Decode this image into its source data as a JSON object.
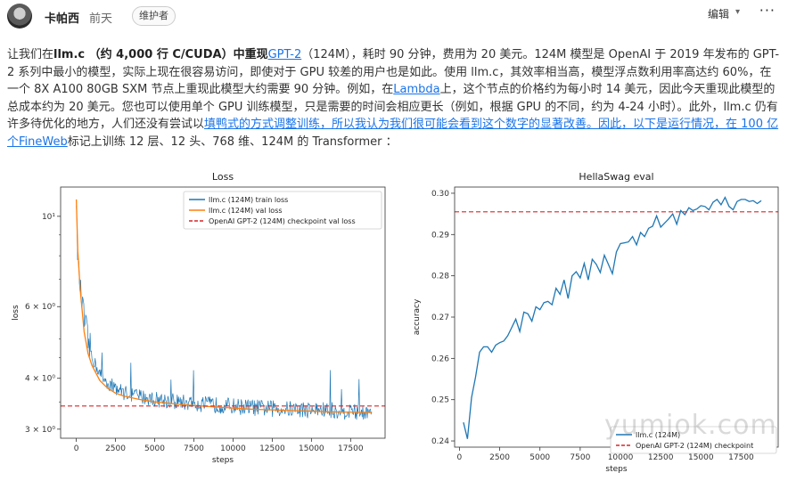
{
  "header": {
    "author": "卡帕西",
    "time": "前天",
    "badge": "维护者",
    "edit_label": "编辑",
    "edit_caret": "▾",
    "more_label": "···"
  },
  "paragraph": {
    "p1": "让我们在",
    "p1b": "llm.c （约 4,000 行 C/CUDA）中重现",
    "link_gpt2": "GPT-2",
    "p2": "（124M），耗时 90 分钟，费用为 20 美元。124M 模型是 OpenAI 于 2019 年发布的 GPT-2 系列中最小的模型，实际上现在很容易访问，即使对于 GPU 较差的用户也是如此。使用 llm.c，其效率相当高，模型浮点数利用率高达约 60%，在一个 8X A100 80GB SXM 节点上重现此模型大约需要 90 分钟。例如，在",
    "link_lambda": "Lambda",
    "p3": "上，这个节点的价格约为每小时 14 美元，因此今天重现此模型的总成本约为 20 美元。您也可以使用单个 GPU 训练模型，只是需要的时间会相应更长（例如，根据 GPU 的不同，约为 4-24 小时）。此外，llm.c 仍有许多待优化的地方，人们还没有尝试以",
    "link_duck": "填鸭式的方式调整训练，所以我认为我们很可能会看到这个数字的显著改善。因此，以下是运行情况，在 100 亿个",
    "link_fineweb": "FineWeb",
    "p4": "标记上训练 12 层、12 头、768 维、124M 的 Transformer ："
  },
  "watermark": "yumiok.com",
  "colors": {
    "train": "#1f77b4",
    "val": "#ff7f0e",
    "ref": "#d62728",
    "link": "#1a73e8"
  },
  "chart_data": [
    {
      "type": "line",
      "title": "Loss",
      "xlabel": "steps",
      "ylabel": "loss",
      "yscale": "log",
      "xlim": [
        -1000,
        19700
      ],
      "ylim": [
        2.85,
        11.8
      ],
      "xticks": [
        0,
        2500,
        5000,
        7500,
        10000,
        12500,
        15000,
        17500
      ],
      "xtick_labels": [
        "0",
        "2500",
        "5000",
        "7500",
        "10000",
        "12500",
        "15000",
        "17500"
      ],
      "yticks": [
        10,
        6,
        4,
        3
      ],
      "ytick_labels": [
        "10¹",
        "6 × 10⁰",
        "4 × 10⁰",
        "3 × 10⁰"
      ],
      "legend_position": "top-right",
      "series": [
        {
          "name": "llm.c (124M) train loss",
          "color": "#1f77b4",
          "x": [
            0,
            50,
            100,
            200,
            300,
            500,
            750,
            1000,
            1500,
            2000,
            2500,
            3000,
            4000,
            5000,
            6000,
            7000,
            8000,
            9000,
            10000,
            11000,
            12000,
            13000,
            14000,
            15000,
            16000,
            17000,
            18000,
            18865
          ],
          "y": [
            11.0,
            9.0,
            7.8,
            7.0,
            6.4,
            5.6,
            4.9,
            4.5,
            4.1,
            3.9,
            3.8,
            3.7,
            3.62,
            3.56,
            3.52,
            3.49,
            3.46,
            3.44,
            3.42,
            3.4,
            3.38,
            3.37,
            3.36,
            3.35,
            3.34,
            3.33,
            3.32,
            3.31
          ]
        },
        {
          "name": "llm.c (124M) val loss",
          "color": "#ff7f0e",
          "x": [
            0,
            100,
            250,
            500,
            750,
            1000,
            1500,
            2000,
            2500,
            3000,
            4000,
            5000,
            6000,
            7000,
            8000,
            9000,
            10000,
            11000,
            12000,
            13000,
            14000,
            15000,
            16000,
            17000,
            18000,
            18865
          ],
          "y": [
            11.0,
            8.2,
            6.6,
            5.2,
            4.6,
            4.3,
            3.95,
            3.78,
            3.68,
            3.62,
            3.55,
            3.5,
            3.47,
            3.44,
            3.42,
            3.4,
            3.38,
            3.36,
            3.35,
            3.34,
            3.33,
            3.32,
            3.31,
            3.305,
            3.3,
            3.3
          ]
        },
        {
          "name": "OpenAI GPT-2 (124M) checkpoint val loss",
          "color": "#d62728",
          "style": "dashed",
          "hline": 3.42
        }
      ]
    },
    {
      "type": "line",
      "title": "HellaSwag eval",
      "xlabel": "steps",
      "ylabel": "accuracy",
      "xlim": [
        -300,
        19800
      ],
      "ylim": [
        0.2385,
        0.3015
      ],
      "xticks": [
        0,
        2500,
        5000,
        7500,
        10000,
        12500,
        15000,
        17500
      ],
      "xtick_labels": [
        "0",
        "2500",
        "5000",
        "7500",
        "10000",
        "12500",
        "15000",
        "17500"
      ],
      "yticks": [
        0.24,
        0.25,
        0.26,
        0.27,
        0.28,
        0.29,
        0.3
      ],
      "ytick_labels": [
        "0.24",
        "0.25",
        "0.26",
        "0.27",
        "0.28",
        "0.29",
        "0.30"
      ],
      "legend_position": "bottom-right",
      "series": [
        {
          "name": "llm.c (124M)",
          "color": "#1f77b4",
          "x": [
            250,
            500,
            750,
            1000,
            1250,
            1500,
            1750,
            2000,
            2250,
            2500,
            2750,
            3000,
            3250,
            3500,
            3750,
            4000,
            4250,
            4500,
            4750,
            5000,
            5250,
            5500,
            5750,
            6000,
            6250,
            6500,
            6750,
            7000,
            7250,
            7500,
            7750,
            8000,
            8250,
            8500,
            8750,
            9000,
            9250,
            9500,
            9750,
            10000,
            10250,
            10500,
            10750,
            11000,
            11250,
            11500,
            11750,
            12000,
            12250,
            12500,
            12750,
            13000,
            13250,
            13500,
            13750,
            14000,
            14250,
            14500,
            14750,
            15000,
            15250,
            15500,
            15750,
            16000,
            16250,
            16500,
            16750,
            17000,
            17250,
            17500,
            17750,
            18000,
            18250,
            18500,
            18750
          ],
          "y": [
            0.2445,
            0.2405,
            0.2505,
            0.2555,
            0.2615,
            0.2628,
            0.2628,
            0.2615,
            0.2632,
            0.2638,
            0.2642,
            0.2655,
            0.2675,
            0.2695,
            0.2665,
            0.2712,
            0.2708,
            0.269,
            0.2725,
            0.2718,
            0.2735,
            0.2738,
            0.273,
            0.277,
            0.2755,
            0.279,
            0.2745,
            0.28,
            0.281,
            0.2795,
            0.283,
            0.279,
            0.284,
            0.2828,
            0.2808,
            0.285,
            0.2828,
            0.2805,
            0.2858,
            0.2878,
            0.288,
            0.2882,
            0.2895,
            0.2875,
            0.2905,
            0.2895,
            0.2915,
            0.292,
            0.2945,
            0.2918,
            0.2928,
            0.2938,
            0.295,
            0.2925,
            0.2958,
            0.2948,
            0.2965,
            0.2958,
            0.2962,
            0.297,
            0.2968,
            0.296,
            0.2978,
            0.2985,
            0.2972,
            0.299,
            0.2968,
            0.296,
            0.298,
            0.2985,
            0.2985,
            0.298,
            0.2982,
            0.2975,
            0.2982
          ]
        },
        {
          "name": "OpenAI GPT-2 (124M) checkpoint",
          "color": "#d62728",
          "style": "dashed",
          "hline": 0.2955
        }
      ]
    }
  ]
}
